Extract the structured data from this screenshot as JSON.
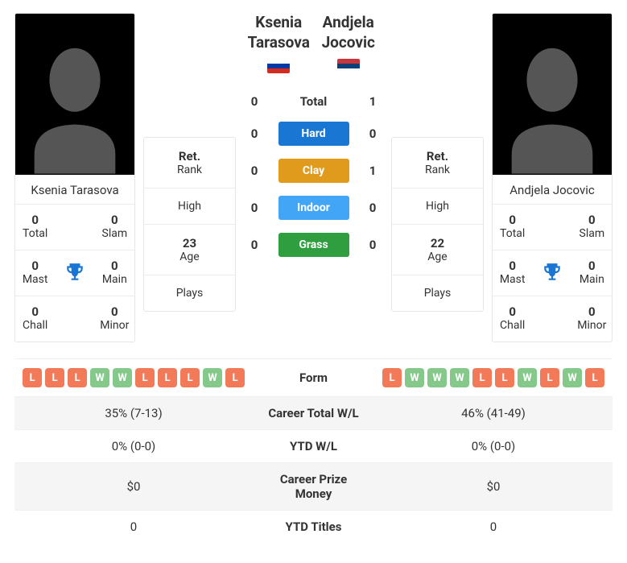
{
  "colors": {
    "win_pill": "#84c88a",
    "loss_pill": "#f37a59",
    "surface_hard": "#1976d2",
    "surface_clay": "#e09b1d",
    "surface_indoor": "#42a5f5",
    "surface_grass": "#2e9e3f",
    "trophy": "#1976d2",
    "row_alt": "#f5f5f5",
    "silhouette": "#555555",
    "flag_russia_top": "#ffffff",
    "flag_russia_mid": "#0039a6",
    "flag_russia_bot": "#d52b1e",
    "flag_serbia_top": "#c6363c",
    "flag_serbia_mid": "#0c4076",
    "flag_serbia_bot": "#ffffff"
  },
  "player1": {
    "name": "Ksenia Tarasova",
    "first": "Ksenia",
    "last": "Tarasova",
    "titles": {
      "total": "0",
      "slam": "0",
      "mast": "0",
      "main": "0",
      "chall": "0",
      "minor": "0"
    },
    "stats": {
      "rank_val": "Ret.",
      "rank_lbl": "Rank",
      "high_val": "",
      "high_lbl": "High",
      "age_val": "23",
      "age_lbl": "Age",
      "plays_val": "",
      "plays_lbl": "Plays"
    }
  },
  "player2": {
    "name": "Andjela Jocovic",
    "first": "Andjela",
    "last": "Jocovic",
    "titles": {
      "total": "0",
      "slam": "0",
      "mast": "0",
      "main": "0",
      "chall": "0",
      "minor": "0"
    },
    "stats": {
      "rank_val": "Ret.",
      "rank_lbl": "Rank",
      "high_val": "",
      "high_lbl": "High",
      "age_val": "22",
      "age_lbl": "Age",
      "plays_val": "",
      "plays_lbl": "Plays"
    }
  },
  "labels": {
    "total": "Total",
    "slam": "Slam",
    "mast": "Mast",
    "main": "Main",
    "chall": "Chall",
    "minor": "Minor"
  },
  "h2h": {
    "total_label": "Total",
    "rows": [
      {
        "left": "0",
        "label": "Total",
        "right": "1",
        "color": null,
        "is_total": true
      },
      {
        "left": "0",
        "label": "Hard",
        "right": "0",
        "color": "#1976d2",
        "is_total": false
      },
      {
        "left": "0",
        "label": "Clay",
        "right": "1",
        "color": "#e09b1d",
        "is_total": false
      },
      {
        "left": "0",
        "label": "Indoor",
        "right": "0",
        "color": "#42a5f5",
        "is_total": false
      },
      {
        "left": "0",
        "label": "Grass",
        "right": "0",
        "color": "#2e9e3f",
        "is_total": false
      }
    ]
  },
  "compare": {
    "form_label": "Form",
    "rows": [
      {
        "left": "35% (7-13)",
        "label": "Career Total W/L",
        "right": "46% (41-49)",
        "alt": true
      },
      {
        "left": "0% (0-0)",
        "label": "YTD W/L",
        "right": "0% (0-0)",
        "alt": false
      },
      {
        "left": "$0",
        "label": "Career Prize Money",
        "right": "$0",
        "alt": true
      },
      {
        "left": "0",
        "label": "YTD Titles",
        "right": "0",
        "alt": false
      }
    ]
  },
  "form": {
    "p1": [
      "L",
      "L",
      "L",
      "W",
      "W",
      "L",
      "L",
      "L",
      "W",
      "L"
    ],
    "p2": [
      "L",
      "W",
      "W",
      "W",
      "L",
      "L",
      "W",
      "L",
      "W",
      "L"
    ]
  }
}
